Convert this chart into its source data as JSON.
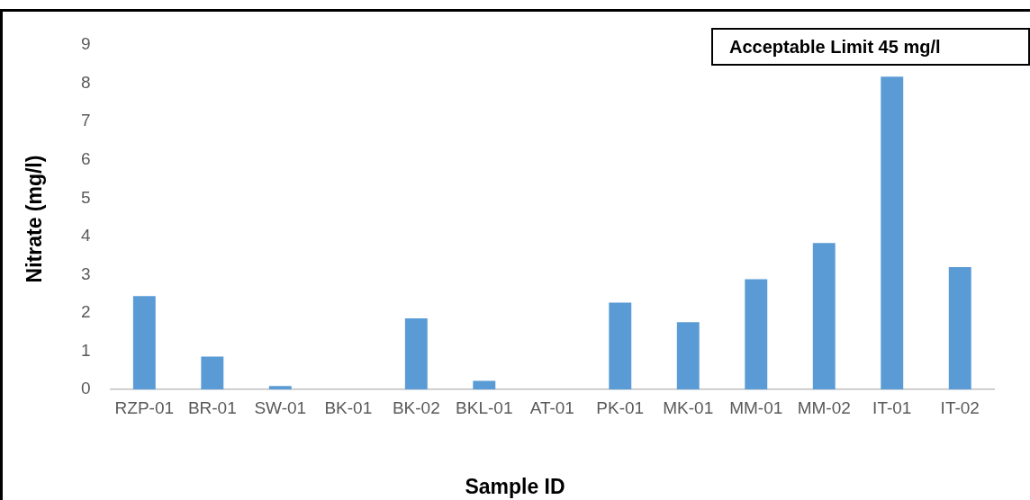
{
  "chart_data": {
    "type": "bar",
    "xlabel": "Sample ID",
    "ylabel": "Nitrate (mg/l)",
    "categories": [
      "RZP-01",
      "BR-01",
      "SW-01",
      "BK-01",
      "BK-02",
      "BKL-01",
      "AT-01",
      "PK-01",
      "MK-01",
      "MM-01",
      "MM-02",
      "IT-01",
      "IT-02"
    ],
    "values": [
      2.44,
      0.86,
      0.09,
      0,
      1.86,
      0.23,
      0,
      2.27,
      1.76,
      2.88,
      3.83,
      8.17,
      3.2
    ],
    "color": "#5b9bd5",
    "ylim": [
      0,
      9
    ],
    "yticks": [
      0,
      1,
      2,
      3,
      4,
      5,
      6,
      7,
      8,
      9
    ],
    "grid": false,
    "legend": false,
    "annotations": [
      "Acceptable Limit 45 mg/l"
    ]
  }
}
